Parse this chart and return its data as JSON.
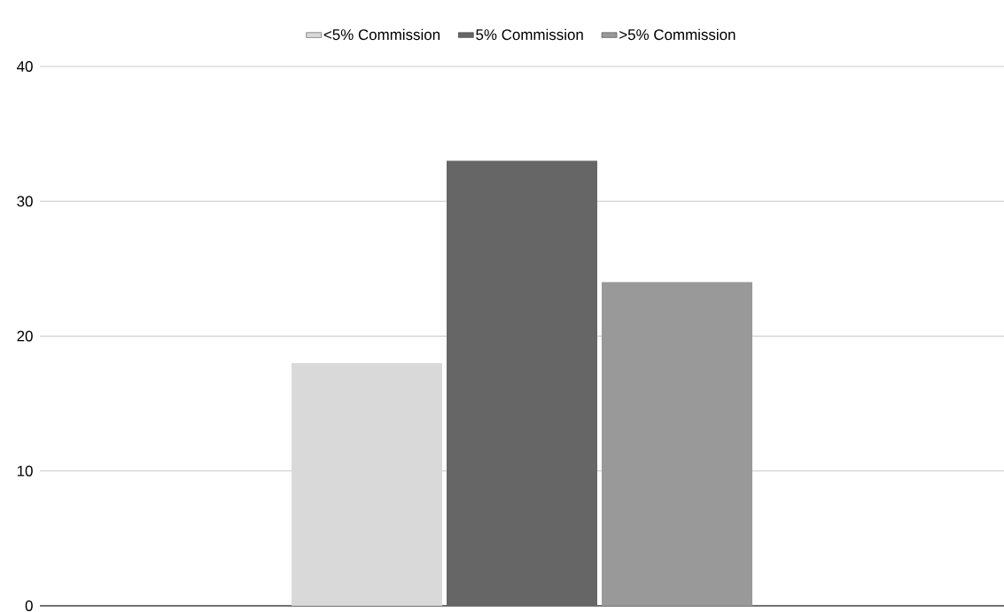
{
  "chart_data": {
    "type": "bar",
    "categories": [
      null
    ],
    "series": [
      {
        "name": "<5% Commission",
        "color": "#d9d9d9",
        "values": [
          18
        ]
      },
      {
        "name": "5% Commission",
        "color": "#666666",
        "values": [
          33
        ]
      },
      {
        "name": ">5% Commission",
        "color": "#999999",
        "values": [
          24
        ]
      }
    ],
    "ylim": [
      0,
      40
    ],
    "yticks": [
      0,
      10,
      20,
      30,
      40
    ],
    "grid": "y",
    "legend": "top"
  }
}
